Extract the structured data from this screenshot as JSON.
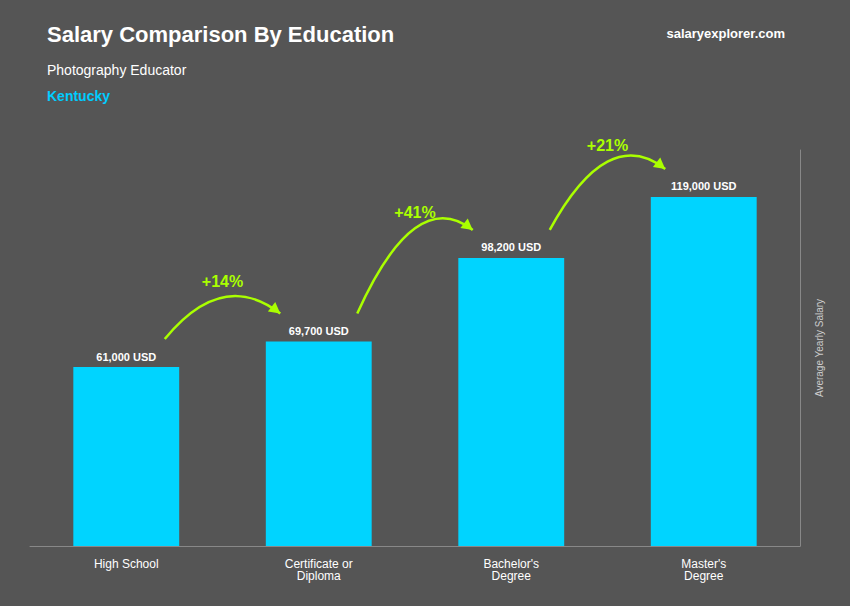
{
  "chart_data": {
    "type": "bar",
    "title": "Salary Comparison By Education",
    "subtitle": "Photography Educator",
    "y_label": "Average Yearly Salary",
    "categories": [
      "High School",
      "Certificate or\nDiploma",
      "Bachelor's\nDegree",
      "Master's\nDegree"
    ],
    "values": [
      61000,
      69700,
      98200,
      119000
    ],
    "value_labels": [
      "61,000 USD",
      "69,700 USD",
      "98,200 USD",
      "119,000 USD"
    ],
    "data_labels": true,
    "color": "#00d4ff",
    "ylim": [
      0,
      135000
    ],
    "grid": false,
    "tick_labels": "x",
    "annotations": [
      {
        "text": "Kentucky",
        "color": "#00ccff"
      },
      {
        "text": "salaryexplorer.com"
      },
      {
        "text": "+14%",
        "from": "High School",
        "to": "Certificate or\nDiploma",
        "color": "#aaff00"
      },
      {
        "text": "+41%",
        "from": "Certificate or\nDiploma",
        "to": "Bachelor's\nDegree",
        "color": "#aaff00"
      },
      {
        "text": "+21%",
        "from": "Bachelor's\nDegree",
        "to": "Master's\nDegree",
        "color": "#aaff00"
      }
    ]
  }
}
